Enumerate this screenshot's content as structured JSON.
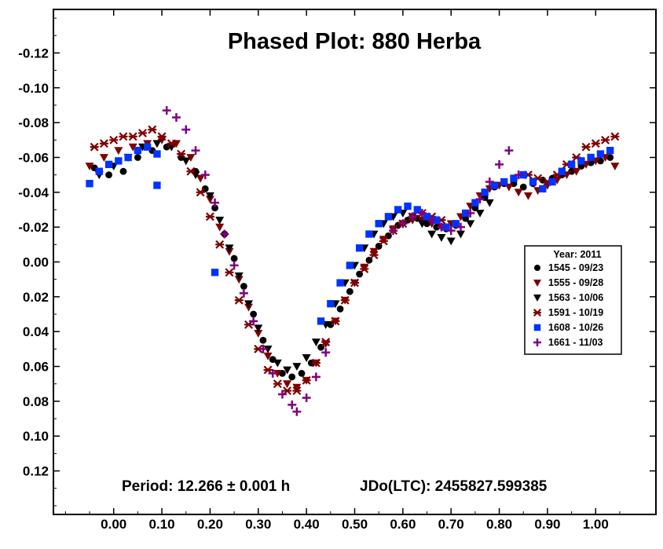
{
  "chart_data": {
    "type": "scatter",
    "title": "Phased Plot: 880 Herba",
    "xlabel": "",
    "ylabel": "",
    "xlim": [
      -0.125,
      1.125
    ],
    "ylim": [
      0.145,
      -0.145
    ],
    "y_inverted": true,
    "x_ticks": [
      "0.00",
      "0.10",
      "0.20",
      "0.30",
      "0.40",
      "0.50",
      "0.60",
      "0.70",
      "0.80",
      "0.90",
      "1.00"
    ],
    "x_tick_values": [
      0.0,
      0.1,
      0.2,
      0.3,
      0.4,
      0.5,
      0.6,
      0.7,
      0.8,
      0.9,
      1.0
    ],
    "y_ticks": [
      "-0.12",
      "-0.10",
      "-0.08",
      "-0.06",
      "-0.04",
      "-0.02",
      "0.00",
      "0.02",
      "0.04",
      "0.06",
      "0.08",
      "0.10",
      "0.12"
    ],
    "y_tick_values": [
      -0.12,
      -0.1,
      -0.08,
      -0.06,
      -0.04,
      -0.02,
      0.0,
      0.02,
      0.04,
      0.06,
      0.08,
      0.1,
      0.12
    ],
    "period_text": "Period: 12.266 ± 0.001 h",
    "epoch_text": "JDo(LTC): 2455827.599385",
    "legend": {
      "title": "Year: 2011",
      "placement": "right"
    },
    "series": [
      {
        "name": "1545 - 09/23",
        "marker": "circle",
        "color": "#000000",
        "x": [
          -0.04,
          -0.01,
          0.02,
          0.05,
          0.08,
          0.11,
          0.14,
          0.17,
          0.19,
          0.21,
          0.23,
          0.25,
          0.27,
          0.29,
          0.31,
          0.33,
          0.35,
          0.37,
          0.39,
          0.41,
          0.43,
          0.45,
          0.47,
          0.49,
          0.51,
          0.53,
          0.55,
          0.57,
          0.59,
          0.61,
          0.63,
          0.65,
          0.67,
          0.69,
          0.71,
          0.73,
          0.75,
          0.77,
          0.79,
          0.81,
          0.83,
          0.85,
          0.87,
          0.89,
          0.91,
          0.93,
          0.95,
          0.97,
          0.99,
          1.01,
          1.03
        ],
        "y": [
          -0.054,
          -0.05,
          -0.052,
          -0.06,
          -0.064,
          -0.066,
          -0.06,
          -0.052,
          -0.042,
          -0.031,
          -0.016,
          -0.002,
          0.014,
          0.03,
          0.045,
          0.056,
          0.064,
          0.066,
          0.064,
          0.058,
          0.049,
          0.036,
          0.027,
          0.017,
          0.007,
          -0.001,
          -0.009,
          -0.015,
          -0.021,
          -0.024,
          -0.025,
          -0.022,
          -0.02,
          -0.019,
          -0.021,
          -0.025,
          -0.031,
          -0.037,
          -0.043,
          -0.045,
          -0.045,
          -0.043,
          -0.045,
          -0.047,
          -0.048,
          -0.05,
          -0.052,
          -0.055,
          -0.057,
          -0.058,
          -0.06
        ]
      },
      {
        "name": "1555 - 09/28",
        "marker": "triangle-down",
        "color": "#7f0000",
        "x": [
          -0.05,
          -0.02,
          0.01,
          0.04,
          0.07,
          0.1,
          0.13,
          0.16,
          0.18,
          0.2,
          0.22,
          0.24,
          0.26,
          0.28,
          0.3,
          0.32,
          0.34,
          0.36,
          0.38,
          0.4,
          0.42,
          0.44,
          0.46,
          0.48,
          0.5,
          0.52,
          0.54,
          0.56,
          0.58,
          0.6,
          0.62,
          0.64,
          0.66,
          0.68,
          0.7,
          0.72,
          0.74,
          0.76,
          0.78,
          0.8,
          0.82,
          0.84,
          0.86,
          0.88,
          0.9,
          0.92,
          0.94,
          0.96,
          0.98,
          1.0,
          1.02,
          1.04
        ],
        "y": [
          -0.055,
          -0.06,
          -0.064,
          -0.066,
          -0.068,
          -0.07,
          -0.068,
          -0.06,
          -0.048,
          -0.036,
          -0.02,
          -0.006,
          0.01,
          0.026,
          0.041,
          0.054,
          0.064,
          0.07,
          0.072,
          0.068,
          0.058,
          0.047,
          0.034,
          0.022,
          0.012,
          0.003,
          -0.006,
          -0.013,
          -0.019,
          -0.022,
          -0.024,
          -0.024,
          -0.022,
          -0.02,
          -0.022,
          -0.026,
          -0.032,
          -0.038,
          -0.042,
          -0.044,
          -0.043,
          -0.04,
          -0.038,
          -0.041,
          -0.044,
          -0.047,
          -0.05,
          -0.052,
          -0.056,
          -0.058,
          -0.06,
          -0.055
        ]
      },
      {
        "name": "1563 - 10/06",
        "marker": "triangle-down",
        "color": "#000000",
        "x": [
          -0.03,
          0.0,
          0.03,
          0.06,
          0.09,
          0.12,
          0.15,
          0.17,
          0.2,
          0.22,
          0.24,
          0.26,
          0.28,
          0.3,
          0.32,
          0.34,
          0.36,
          0.38,
          0.4,
          0.42,
          0.44,
          0.46,
          0.48,
          0.5,
          0.52,
          0.54,
          0.56,
          0.58,
          0.6,
          0.62,
          0.64,
          0.66,
          0.68,
          0.7,
          0.72,
          0.74,
          0.76,
          0.78
        ],
        "y": [
          -0.05,
          -0.055,
          -0.06,
          -0.066,
          -0.068,
          -0.066,
          -0.058,
          -0.05,
          -0.038,
          -0.024,
          -0.008,
          0.008,
          0.024,
          0.038,
          0.05,
          0.058,
          0.062,
          0.06,
          0.055,
          0.046,
          0.036,
          0.024,
          0.012,
          0.002,
          -0.008,
          -0.016,
          -0.022,
          -0.026,
          -0.028,
          -0.026,
          -0.022,
          -0.016,
          -0.014,
          -0.012,
          -0.016,
          -0.022,
          -0.028,
          -0.034
        ]
      },
      {
        "name": "1591 - 10/19",
        "marker": "asterisk",
        "color": "#7f0000",
        "x": [
          -0.04,
          -0.02,
          0.0,
          0.02,
          0.04,
          0.06,
          0.08,
          0.1,
          0.12,
          0.14,
          0.16,
          0.18,
          0.2,
          0.22,
          0.24,
          0.26,
          0.28,
          0.3,
          0.32,
          0.34,
          0.36,
          0.38,
          0.4,
          0.42,
          0.44,
          0.46,
          0.48,
          0.5,
          0.52,
          0.54,
          0.56,
          0.58,
          0.6,
          0.62,
          0.64,
          0.66,
          0.68,
          0.86,
          0.88,
          0.9,
          0.92,
          0.94,
          0.96,
          0.98,
          1.0,
          1.02,
          1.04
        ],
        "y": [
          -0.066,
          -0.068,
          -0.07,
          -0.072,
          -0.072,
          -0.074,
          -0.076,
          -0.072,
          -0.068,
          -0.062,
          -0.052,
          -0.04,
          -0.026,
          -0.01,
          0.006,
          0.022,
          0.036,
          0.05,
          0.062,
          0.07,
          0.074,
          0.074,
          0.068,
          0.058,
          0.046,
          0.034,
          0.022,
          0.012,
          0.004,
          -0.004,
          -0.012,
          -0.018,
          -0.022,
          -0.026,
          -0.028,
          -0.026,
          -0.024,
          -0.05,
          -0.048,
          -0.046,
          -0.05,
          -0.056,
          -0.06,
          -0.066,
          -0.068,
          -0.07,
          -0.072
        ]
      },
      {
        "name": "1608 - 10/26",
        "marker": "square",
        "color": "#0033ff",
        "x": [
          -0.05,
          -0.03,
          -0.01,
          0.01,
          0.03,
          0.05,
          0.07,
          0.09,
          0.09,
          0.21,
          0.43,
          0.45,
          0.47,
          0.49,
          0.51,
          0.53,
          0.55,
          0.57,
          0.59,
          0.61,
          0.63,
          0.65,
          0.67,
          0.69,
          0.71,
          0.73,
          0.75,
          0.77,
          0.79,
          0.81,
          0.83,
          0.85,
          0.87,
          0.89,
          0.91,
          0.93,
          0.95,
          0.97,
          0.99,
          1.01,
          1.03
        ],
        "y": [
          -0.045,
          -0.052,
          -0.056,
          -0.058,
          -0.06,
          -0.064,
          -0.066,
          -0.062,
          -0.044,
          0.006,
          0.034,
          0.024,
          0.012,
          0.002,
          -0.008,
          -0.016,
          -0.022,
          -0.026,
          -0.03,
          -0.032,
          -0.03,
          -0.026,
          -0.024,
          -0.02,
          -0.022,
          -0.028,
          -0.034,
          -0.04,
          -0.044,
          -0.046,
          -0.048,
          -0.05,
          -0.046,
          -0.042,
          -0.046,
          -0.052,
          -0.056,
          -0.058,
          -0.06,
          -0.062,
          -0.064
        ]
      },
      {
        "name": "1661 - 11/03",
        "marker": "plus",
        "color": "#800080",
        "x": [
          0.11,
          0.13,
          0.15,
          0.17,
          0.19,
          0.21,
          0.23,
          0.25,
          0.27,
          0.29,
          0.31,
          0.33,
          0.35,
          0.37,
          0.38,
          0.4,
          0.42,
          0.44,
          0.58,
          0.6,
          0.62,
          0.64,
          0.66,
          0.68,
          0.7,
          0.72,
          0.74,
          0.76,
          0.78,
          0.8,
          0.82,
          0.84
        ],
        "y": [
          -0.087,
          -0.083,
          -0.076,
          -0.064,
          -0.05,
          -0.034,
          -0.016,
          0.002,
          0.018,
          0.034,
          0.05,
          0.064,
          0.076,
          0.082,
          0.086,
          0.078,
          0.066,
          0.052,
          -0.018,
          -0.022,
          -0.026,
          -0.028,
          -0.024,
          -0.02,
          -0.018,
          -0.02,
          -0.028,
          -0.036,
          -0.046,
          -0.056,
          -0.064,
          -0.05
        ]
      }
    ]
  }
}
